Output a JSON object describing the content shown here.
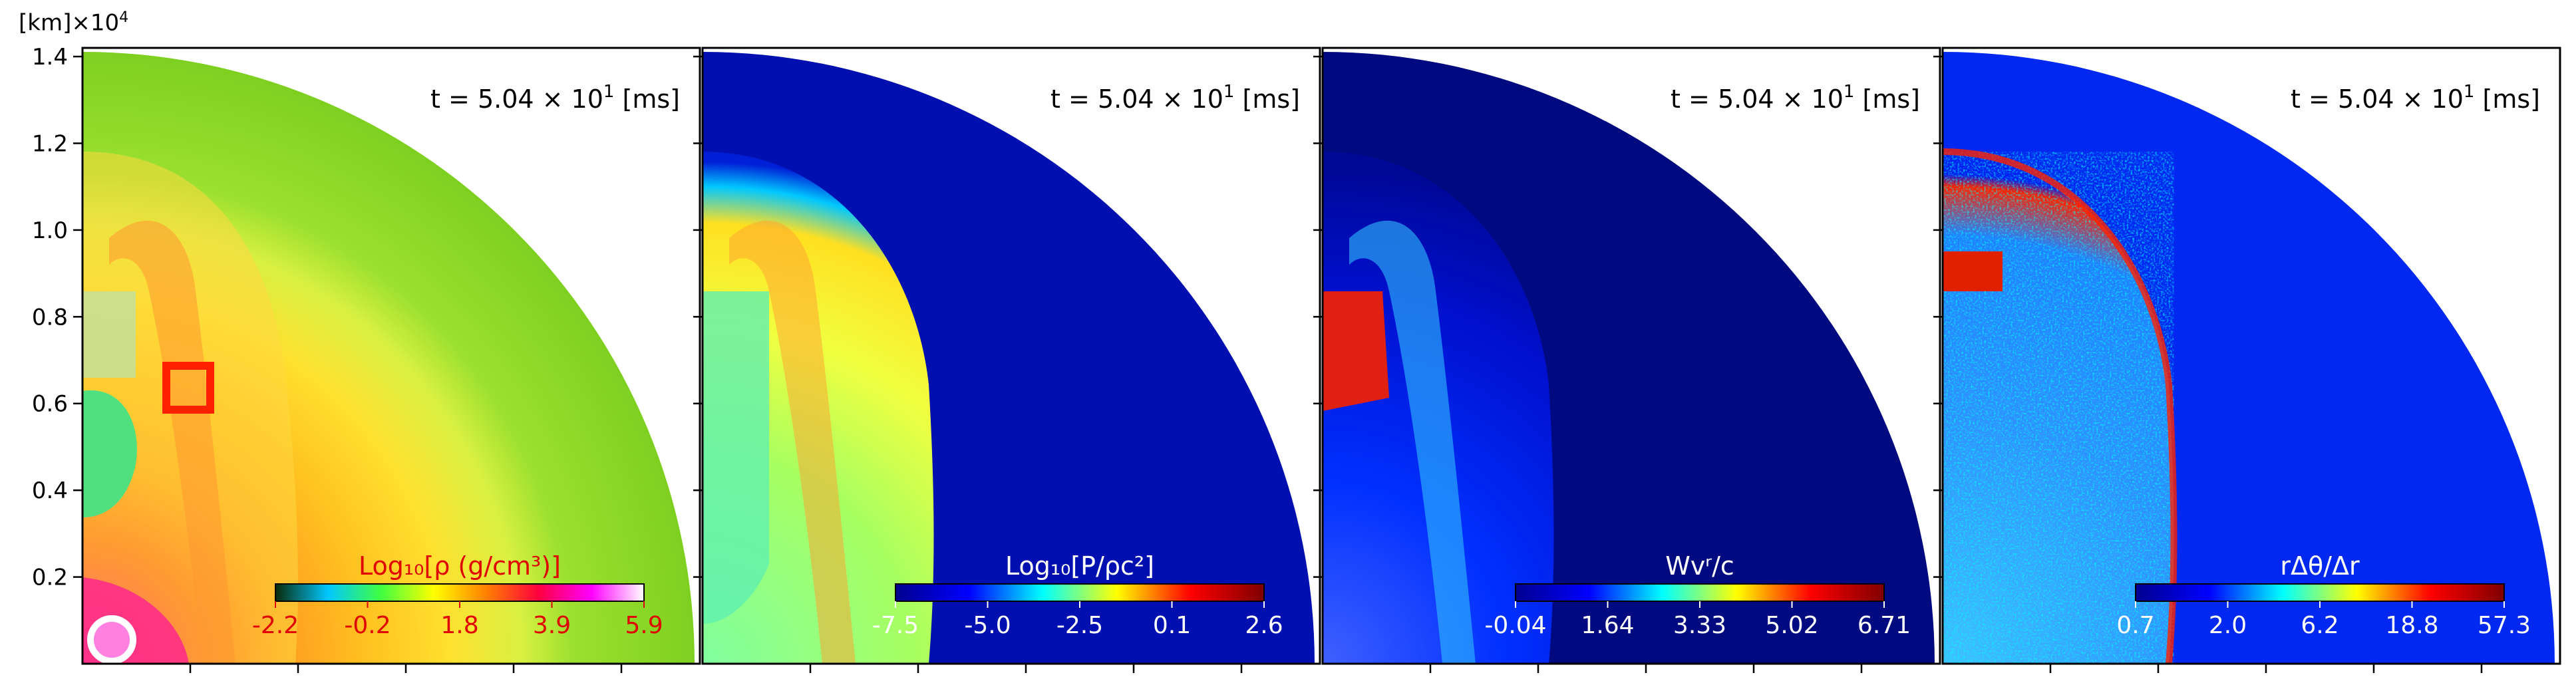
{
  "figure": {
    "unit_label": "[km]×10",
    "unit_exp": "4"
  },
  "chart_data": [
    {
      "type": "heatmap",
      "panel": 1,
      "time_label": "t = 5.04 × 10",
      "time_exp": "1",
      "time_unit": " [ms]",
      "colorbar_label": "Log₁₀[ρ (g/cm³)]",
      "colorbar_ticks": [
        "-2.2",
        "-0.2",
        "1.8",
        "3.9",
        "5.9"
      ],
      "colormap": [
        "#0a2a0a",
        "#00c8ff",
        "#40ff40",
        "#ffff00",
        "#ff8000",
        "#ff0040",
        "#ff00ff",
        "#ffffff"
      ],
      "label_color": "#e00000",
      "yticks": [
        "0.2",
        "0.4",
        "0.6",
        "0.8",
        "1.0",
        "1.2",
        "1.4"
      ],
      "ylim": [
        0,
        1.42
      ],
      "marker": "red square"
    },
    {
      "type": "heatmap",
      "panel": 2,
      "time_label": "t = 5.04 × 10",
      "time_exp": "1",
      "time_unit": " [ms]",
      "colorbar_label": "Log₁₀[P/ρc²]",
      "colorbar_ticks": [
        "-7.5",
        "-5.0",
        "-2.5",
        "0.1",
        "2.6"
      ],
      "colormap": [
        "#00008f",
        "#0000ff",
        "#00ffff",
        "#ffff00",
        "#ff0000",
        "#800000"
      ],
      "label_color": "#ffffff"
    },
    {
      "type": "heatmap",
      "panel": 3,
      "time_label": "t = 5.04 × 10",
      "time_exp": "1",
      "time_unit": " [ms]",
      "colorbar_label": "Wvʳ/c",
      "colorbar_ticks": [
        "-0.04",
        "1.64",
        "3.33",
        "5.02",
        "6.71"
      ],
      "colormap": [
        "#00008f",
        "#0000ff",
        "#00ffff",
        "#ffff00",
        "#ff0000",
        "#800000"
      ],
      "label_color": "#ffffff"
    },
    {
      "type": "heatmap",
      "panel": 4,
      "time_label": "t = 5.04 × 10",
      "time_exp": "1",
      "time_unit": " [ms]",
      "colorbar_label": "rΔθ/Δr",
      "colorbar_ticks": [
        "0.7",
        "2.0",
        "6.2",
        "18.8",
        "57.3"
      ],
      "colormap": [
        "#00008f",
        "#0000ff",
        "#00ffff",
        "#ffff00",
        "#ff0000",
        "#800000"
      ],
      "label_color": "#ffffff"
    }
  ]
}
